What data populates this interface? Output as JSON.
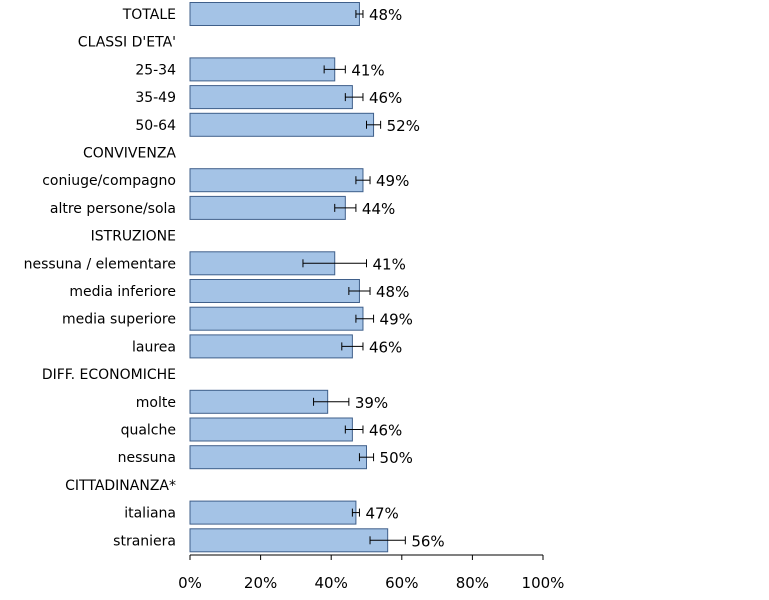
{
  "chart_data": {
    "type": "bar",
    "orientation": "horizontal",
    "title": "",
    "xlabel": "",
    "ylabel": "",
    "xlim": [
      0,
      100
    ],
    "x_ticks": [
      "0%",
      "20%",
      "40%",
      "60%",
      "80%",
      "100%"
    ],
    "grid": false,
    "bar_color": "#a4c3e6",
    "rows": [
      {
        "label": "TOTALE",
        "value": 48,
        "err_low": 47,
        "err_high": 49,
        "value_label": "48%"
      },
      {
        "label": "CLASSI D'ETA'"
      },
      {
        "label": "25-34",
        "value": 41,
        "err_low": 38,
        "err_high": 44,
        "value_label": "41%"
      },
      {
        "label": "35-49",
        "value": 46,
        "err_low": 44,
        "err_high": 49,
        "value_label": "46%"
      },
      {
        "label": "50-64",
        "value": 52,
        "err_low": 50,
        "err_high": 54,
        "value_label": "52%"
      },
      {
        "label": "CONVIVENZA"
      },
      {
        "label": "coniuge/compagno",
        "value": 49,
        "err_low": 47,
        "err_high": 51,
        "value_label": "49%"
      },
      {
        "label": "altre persone/sola",
        "value": 44,
        "err_low": 41,
        "err_high": 47,
        "value_label": "44%"
      },
      {
        "label": "ISTRUZIONE"
      },
      {
        "label": "nessuna / elementare",
        "value": 41,
        "err_low": 32,
        "err_high": 50,
        "value_label": "41%"
      },
      {
        "label": "media inferiore",
        "value": 48,
        "err_low": 45,
        "err_high": 51,
        "value_label": "48%"
      },
      {
        "label": "media superiore",
        "value": 49,
        "err_low": 47,
        "err_high": 52,
        "value_label": "49%"
      },
      {
        "label": "laurea",
        "value": 46,
        "err_low": 43,
        "err_high": 49,
        "value_label": "46%"
      },
      {
        "label": "DIFF. ECONOMICHE"
      },
      {
        "label": "molte",
        "value": 39,
        "err_low": 35,
        "err_high": 45,
        "value_label": "39%"
      },
      {
        "label": "qualche",
        "value": 46,
        "err_low": 44,
        "err_high": 49,
        "value_label": "46%"
      },
      {
        "label": "nessuna",
        "value": 50,
        "err_low": 48,
        "err_high": 52,
        "value_label": "50%"
      },
      {
        "label": "CITTADINANZA*"
      },
      {
        "label": "italiana",
        "value": 47,
        "err_low": 46,
        "err_high": 48,
        "value_label": "47%"
      },
      {
        "label": "straniera",
        "value": 56,
        "err_low": 51,
        "err_high": 61,
        "value_label": "56%"
      }
    ]
  }
}
